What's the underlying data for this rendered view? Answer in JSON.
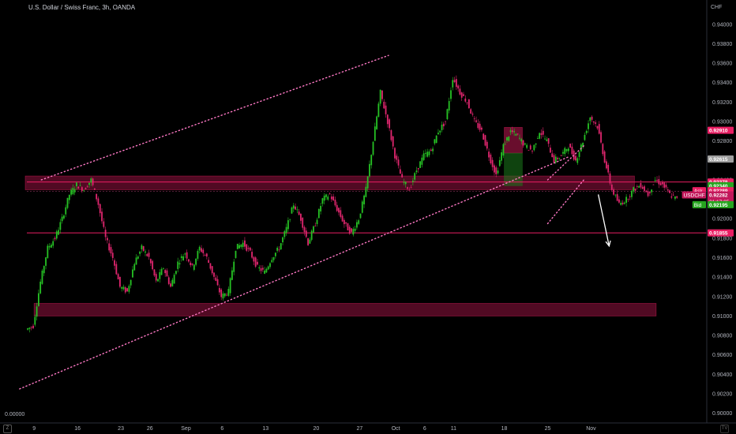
{
  "window": {
    "title": "U.S. Dollar / Swiss Franc, 3h, OANDA",
    "currency": "CHF",
    "left_axis_value": "0.00000",
    "timezone_badge": "Z",
    "logo_label": "TV"
  },
  "colors": {
    "background": "#000000",
    "up_candle": "#26c224",
    "down_candle": "#e0266e",
    "zone_fill": "#e91e63",
    "trend_line": "#ff79c6",
    "line_red": "#e91e63",
    "arrow": "#ffffff",
    "axis_text": "#b2b5be"
  },
  "chart_data": {
    "type": "candlestick",
    "symbol": "USDCHF",
    "timeframe": "3h",
    "ylim": [
      0.899,
      0.9425
    ],
    "xlim_index": [
      0,
      94
    ],
    "x_ticks": [
      {
        "label": "9",
        "index": 1
      },
      {
        "label": "16",
        "index": 7
      },
      {
        "label": "23",
        "index": 13
      },
      {
        "label": "26",
        "index": 17
      },
      {
        "label": "Sep",
        "index": 22
      },
      {
        "label": "6",
        "index": 27
      },
      {
        "label": "13",
        "index": 33
      },
      {
        "label": "20",
        "index": 40
      },
      {
        "label": "27",
        "index": 46
      },
      {
        "label": "Oct",
        "index": 51
      },
      {
        "label": "6",
        "index": 55
      },
      {
        "label": "11",
        "index": 59
      },
      {
        "label": "18",
        "index": 66
      },
      {
        "label": "25",
        "index": 72
      },
      {
        "label": "Nov",
        "index": 78
      }
    ],
    "y_ticks": [
      "0.94000",
      "0.93800",
      "0.93600",
      "0.93400",
      "0.93200",
      "0.93000",
      "0.92800",
      "0.92600",
      "0.92400",
      "0.92200",
      "0.92000",
      "0.91800",
      "0.91600",
      "0.91400",
      "0.91200",
      "0.91000",
      "0.90800",
      "0.90600",
      "0.90400",
      "0.90200",
      "0.90000"
    ],
    "closes": [
      0.909,
      0.9135,
      0.917,
      0.918,
      0.92,
      0.9225,
      0.9235,
      0.923,
      0.924,
      0.9215,
      0.918,
      0.916,
      0.913,
      0.9125,
      0.9155,
      0.917,
      0.916,
      0.9135,
      0.915,
      0.913,
      0.9155,
      0.9165,
      0.915,
      0.917,
      0.916,
      0.914,
      0.912,
      0.9125,
      0.917,
      0.9175,
      0.9165,
      0.915,
      0.9145,
      0.916,
      0.917,
      0.919,
      0.9215,
      0.92,
      0.9175,
      0.9195,
      0.922,
      0.9225,
      0.921,
      0.9195,
      0.9185,
      0.92,
      0.923,
      0.928,
      0.933,
      0.93,
      0.9265,
      0.924,
      0.923,
      0.925,
      0.9265,
      0.927,
      0.929,
      0.93,
      0.9345,
      0.933,
      0.932,
      0.93,
      0.929,
      0.9265,
      0.9245,
      0.9275,
      0.929,
      0.9285,
      0.9275,
      0.927,
      0.929,
      0.928,
      0.926,
      0.9265,
      0.9275,
      0.926,
      0.928,
      0.9305,
      0.9295,
      0.926,
      0.923,
      0.9215,
      0.922,
      0.923,
      0.9235,
      0.9225,
      0.924,
      0.9235,
      0.9225,
      0.922
    ],
    "trend_lines": [
      {
        "name": "channel-top",
        "from": [
          2,
          0.924
        ],
        "to": [
          50,
          0.9368
        ]
      },
      {
        "name": "channel-bottom",
        "from": [
          -1,
          0.9025
        ],
        "to": [
          75,
          0.9264
        ]
      },
      {
        "name": "wedge-upper",
        "from": [
          72,
          0.924
        ],
        "to": [
          77,
          0.9275
        ]
      },
      {
        "name": "wedge-lower",
        "from": [
          72,
          0.9195
        ],
        "to": [
          77,
          0.924
        ]
      }
    ],
    "zones": [
      {
        "name": "resistance-zone",
        "from_index": -1,
        "to_index": 84,
        "y_low": 0.92298,
        "y_high": 0.9244
      },
      {
        "name": "support-zone",
        "from_index": 1,
        "to_index": 87,
        "y_low": 0.91,
        "y_high": 0.9113
      },
      {
        "name": "trade-box-loss",
        "from_index": 66,
        "to_index": 68.5,
        "y_low": 0.92675,
        "y_high": 0.9294
      },
      {
        "name": "trade-box-profit",
        "from_index": 66,
        "to_index": 68.5,
        "y_low": 0.9234,
        "y_high": 0.92675
      }
    ],
    "horizontal_lines": [
      {
        "name": "line-92378",
        "y": 0.92378
      },
      {
        "name": "line-91855",
        "y": 0.91855
      },
      {
        "name": "line-last",
        "y": 0.92282
      }
    ],
    "arrow": {
      "from": [
        79,
        0.9225
      ],
      "to": [
        80.5,
        0.9172
      ]
    },
    "price_labels": [
      {
        "label": "0.92910",
        "value": 0.9291,
        "color": "#e91e63"
      },
      {
        "label": "0.92615",
        "value": 0.92615,
        "color": "#9e9e9e"
      },
      {
        "label": "0.92378",
        "value": 0.92378,
        "color": "#e91e63"
      },
      {
        "label": "0.92340",
        "value": 0.9234,
        "color": "#26a51f"
      },
      {
        "label": "0.92289",
        "value": 0.92289,
        "color": "#e91e63",
        "tag": "Ask"
      },
      {
        "label": "0.92282",
        "value": 0.92245,
        "color": "#c2185b",
        "tag": "USDCHF",
        "sub": "01:17:05"
      },
      {
        "label": "0.92195",
        "value": 0.92145,
        "color": "#26a51f",
        "tag": "Bid"
      },
      {
        "label": "0.91855",
        "value": 0.91855,
        "color": "#e91e63"
      }
    ]
  }
}
